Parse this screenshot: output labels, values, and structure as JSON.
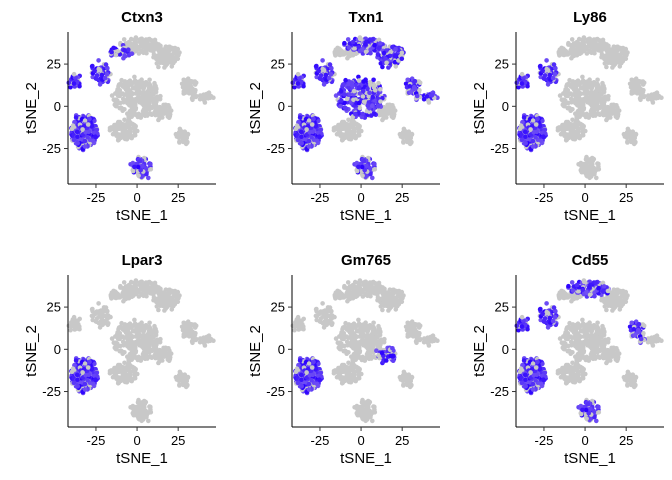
{
  "chart_data": [
    {
      "type": "scatter",
      "title": "Ctxn3",
      "xlabel": "tSNE_1",
      "ylabel": "tSNE_2",
      "x_ticks": [
        -25,
        0,
        25
      ],
      "y_ticks": [
        -25,
        0,
        25
      ],
      "xlim": [
        -42,
        48
      ],
      "ylim": [
        -46,
        44
      ],
      "expressing_clusters": [
        "left-big",
        "left-top-small",
        "left-upper",
        "bottom-center",
        "top-left-ribbon"
      ]
    },
    {
      "type": "scatter",
      "title": "Txn1",
      "xlabel": "tSNE_1",
      "ylabel": "tSNE_2",
      "x_ticks": [
        -25,
        0,
        25
      ],
      "y_ticks": [
        -25,
        0,
        25
      ],
      "xlim": [
        -42,
        48
      ],
      "ylim": [
        -46,
        44
      ],
      "expressing_clusters": [
        "left-big",
        "left-top-small",
        "left-upper",
        "top-ribbon",
        "top-right",
        "center",
        "bottom-center",
        "right-mid",
        "right-small"
      ]
    },
    {
      "type": "scatter",
      "title": "Ly86",
      "xlabel": "tSNE_1",
      "ylabel": "tSNE_2",
      "x_ticks": [
        -25,
        0,
        25
      ],
      "y_ticks": [
        -25,
        0,
        25
      ],
      "xlim": [
        -42,
        48
      ],
      "ylim": [
        -46,
        44
      ],
      "expressing_clusters": [
        "left-big",
        "left-top-small",
        "left-upper"
      ]
    },
    {
      "type": "scatter",
      "title": "Lpar3",
      "xlabel": "tSNE_1",
      "ylabel": "tSNE_2",
      "x_ticks": [
        -25,
        0,
        25
      ],
      "y_ticks": [
        -25,
        0,
        25
      ],
      "xlim": [
        -42,
        48
      ],
      "ylim": [
        -46,
        44
      ],
      "expressing_clusters": [
        "left-big"
      ]
    },
    {
      "type": "scatter",
      "title": "Gm765",
      "xlabel": "tSNE_1",
      "ylabel": "tSNE_2",
      "x_ticks": [
        -25,
        0,
        25
      ],
      "y_ticks": [
        -25,
        0,
        25
      ],
      "xlim": [
        -42,
        48
      ],
      "ylim": [
        -46,
        44
      ],
      "expressing_clusters": [
        "left-big",
        "center-right"
      ]
    },
    {
      "type": "scatter",
      "title": "Cd55",
      "xlabel": "tSNE_1",
      "ylabel": "tSNE_2",
      "x_ticks": [
        -25,
        0,
        25
      ],
      "y_ticks": [
        -25,
        0,
        25
      ],
      "xlim": [
        -42,
        48
      ],
      "ylim": [
        -46,
        44
      ],
      "expressing_clusters": [
        "left-big",
        "left-top-small",
        "left-upper",
        "top-ribbon",
        "bottom-center",
        "right-mid"
      ]
    }
  ],
  "colors": {
    "low": "#c8c8c8",
    "high": "#2a00ff",
    "mid": "#8a6ef0"
  }
}
